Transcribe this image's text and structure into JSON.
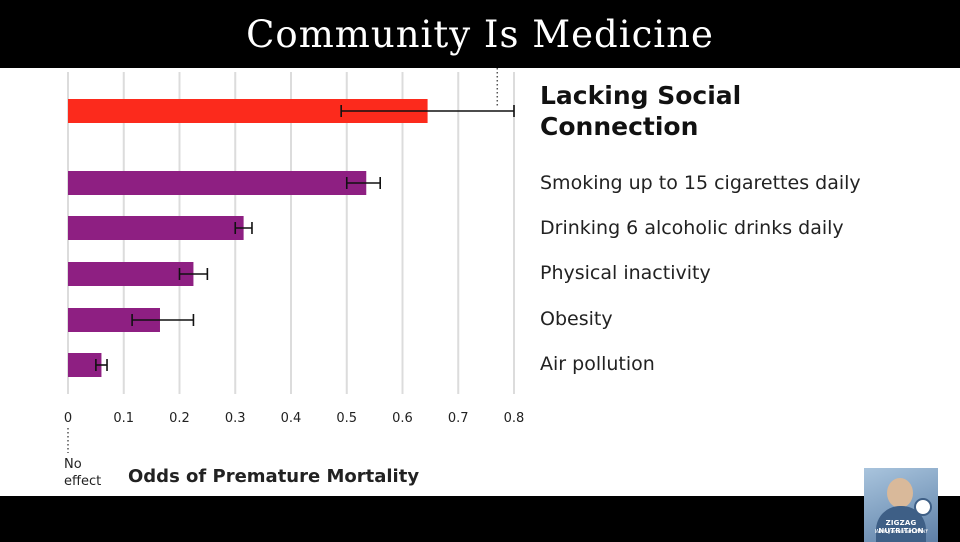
{
  "slide": {
    "title": "Community Is Medicine"
  },
  "chart_data": {
    "type": "bar",
    "orientation": "horizontal",
    "categories": [
      "Lacking Social Connection",
      "Smoking up to 15 cigarettes daily",
      "Drinking 6 alcoholic drinks daily",
      "Physical inactivity",
      "Obesity",
      "Air pollution"
    ],
    "values": [
      0.645,
      0.535,
      0.315,
      0.225,
      0.165,
      0.06
    ],
    "error_low": [
      0.49,
      0.5,
      0.3,
      0.2,
      0.115,
      0.05
    ],
    "error_high": [
      0.8,
      0.56,
      0.33,
      0.25,
      0.225,
      0.07
    ],
    "highlight_index": 0,
    "colors": {
      "highlight": "#fc2a1c",
      "default": "#8e1f82"
    },
    "xlim": [
      0,
      0.8
    ],
    "xticks": [
      "0",
      "0.1",
      "0.2",
      "0.3",
      "0.4",
      "0.5",
      "0.6",
      "0.7",
      "0.8"
    ],
    "reference_line_x": 0.77,
    "xlabel": "Odds of Premature Mortality",
    "zero_label": "No effect",
    "grid": true
  },
  "logo": {
    "name": "ZIGZAG NUTRITION",
    "sub": "With Jonathan Wolf"
  }
}
